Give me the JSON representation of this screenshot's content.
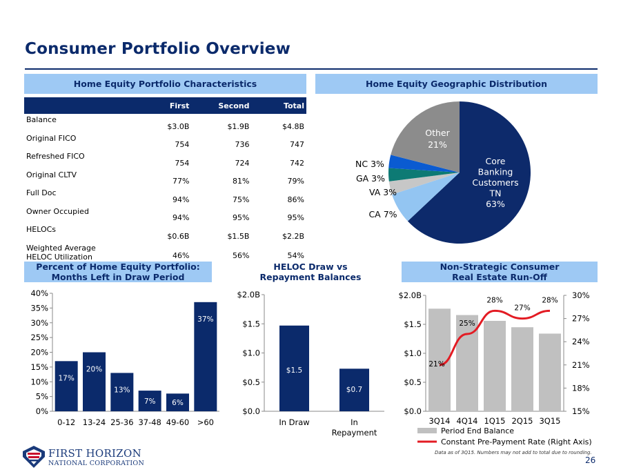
{
  "title": "Consumer Portfolio Overview",
  "banners": {
    "characteristics": "Home Equity Portfolio Characteristics",
    "geographic": "Home Equity Geographic Distribution",
    "months_line1": "Percent of Home Equity Portfolio:",
    "months_line2": "Months Left in Draw Period",
    "heloc_line1": "HELOC Draw vs",
    "heloc_line2": "Repayment Balances",
    "runoff_line1": "Non-Strategic Consumer",
    "runoff_line2": "Real Estate Run-Off"
  },
  "table": {
    "headers": [
      "",
      "First",
      "Second",
      "Total"
    ],
    "rows": [
      {
        "label": "Balance",
        "first": "$3.0B",
        "second": "$1.9B",
        "total": "$4.8B"
      },
      {
        "label": "Original FICO",
        "first": "754",
        "second": "736",
        "total": "747"
      },
      {
        "label": "Refreshed FICO",
        "first": "754",
        "second": "724",
        "total": "742"
      },
      {
        "label": "Original CLTV",
        "first": "77%",
        "second": "81%",
        "total": "79%"
      },
      {
        "label": "Full Doc",
        "first": "94%",
        "second": "75%",
        "total": "86%"
      },
      {
        "label": "Owner Occupied",
        "first": "94%",
        "second": "95%",
        "total": "95%"
      },
      {
        "label": "HELOCs",
        "first": "$0.6B",
        "second": "$1.5B",
        "total": "$2.2B"
      },
      {
        "label": "Weighted Average HELOC Utilization",
        "first": "46%",
        "second": "56%",
        "total": "54%"
      }
    ]
  },
  "colors": {
    "navy": "#0b2a6b",
    "banner": "#9ec9f4",
    "gray_bar": "#c0c0c0",
    "red_line": "#e31b23",
    "pie_core": "#0d2a6b",
    "pie_ca": "#93c5f2",
    "pie_va": "#c7c7c7",
    "pie_ga": "#0d7a74",
    "pie_nc": "#0a5bd1",
    "pie_other": "#8c8c8c"
  },
  "chart_data": [
    {
      "type": "pie",
      "title": "Home Equity Geographic Distribution",
      "labels": [
        "Core Banking Customers TN",
        "CA",
        "VA",
        "GA",
        "NC",
        "Other"
      ],
      "display_labels": [
        [
          "Core",
          "Banking",
          "Customers",
          "TN",
          "63%"
        ],
        [
          "CA 7%"
        ],
        [
          "VA 3%"
        ],
        [
          "GA 3%"
        ],
        [
          "NC 3%"
        ],
        [
          "Other",
          "21%"
        ]
      ],
      "values": [
        63,
        7,
        3,
        3,
        3,
        21
      ]
    },
    {
      "type": "bar",
      "title": "Percent of Home Equity Portfolio: Months Left in Draw Period",
      "categories": [
        "0-12",
        "13-24",
        "25-36",
        "37-48",
        "49-60",
        ">60"
      ],
      "values": [
        17,
        20,
        13,
        7,
        6,
        37
      ],
      "data_labels": [
        "17%",
        "20%",
        "13%",
        "7%",
        "6%",
        "37%"
      ],
      "ylim": [
        0,
        40
      ],
      "yticks": [
        "0%",
        "5%",
        "10%",
        "15%",
        "20%",
        "25%",
        "30%",
        "35%",
        "40%"
      ]
    },
    {
      "type": "bar",
      "title": "HELOC Draw vs Repayment Balances",
      "categories": [
        "In Draw",
        "In Repayment"
      ],
      "category_lines": [
        [
          "In Draw"
        ],
        [
          "In",
          "Repayment"
        ]
      ],
      "values": [
        1.47,
        0.73
      ],
      "data_labels": [
        "$1.5",
        "$0.7"
      ],
      "ylim": [
        0,
        2.0
      ],
      "yticks": [
        "$0.0",
        "$0.5",
        "$1.0",
        "$1.5",
        "$2.0B"
      ]
    },
    {
      "type": "bar",
      "title": "Non-Strategic Consumer Real Estate Run-Off",
      "categories": [
        "3Q14",
        "4Q14",
        "1Q15",
        "2Q15",
        "3Q15"
      ],
      "series": [
        {
          "name": "Period End Balance",
          "type": "bar",
          "axis": "left",
          "values": [
            1.77,
            1.66,
            1.56,
            1.45,
            1.34
          ]
        },
        {
          "name": "Constant Pre-Payment Rate (Right Axis)",
          "type": "line",
          "axis": "right",
          "values": [
            21,
            25,
            28,
            27,
            28
          ],
          "data_labels": [
            "21%",
            "25%",
            "28%",
            "27%",
            "28%"
          ]
        }
      ],
      "ylim": [
        0,
        2.0
      ],
      "yticks": [
        "$0.0",
        "$0.5",
        "$1.0",
        "$1.5",
        "$2.0B"
      ],
      "y2lim": [
        15,
        30
      ],
      "y2ticks": [
        "15%",
        "18%",
        "21%",
        "24%",
        "27%",
        "30%"
      ]
    }
  ],
  "footnote": "Data as of 3Q15. Numbers may not add to total due to rounding.",
  "page_number": "26",
  "logo": {
    "line1": "FIRST HORIZON",
    "line2": "NATIONAL CORPORATION"
  }
}
